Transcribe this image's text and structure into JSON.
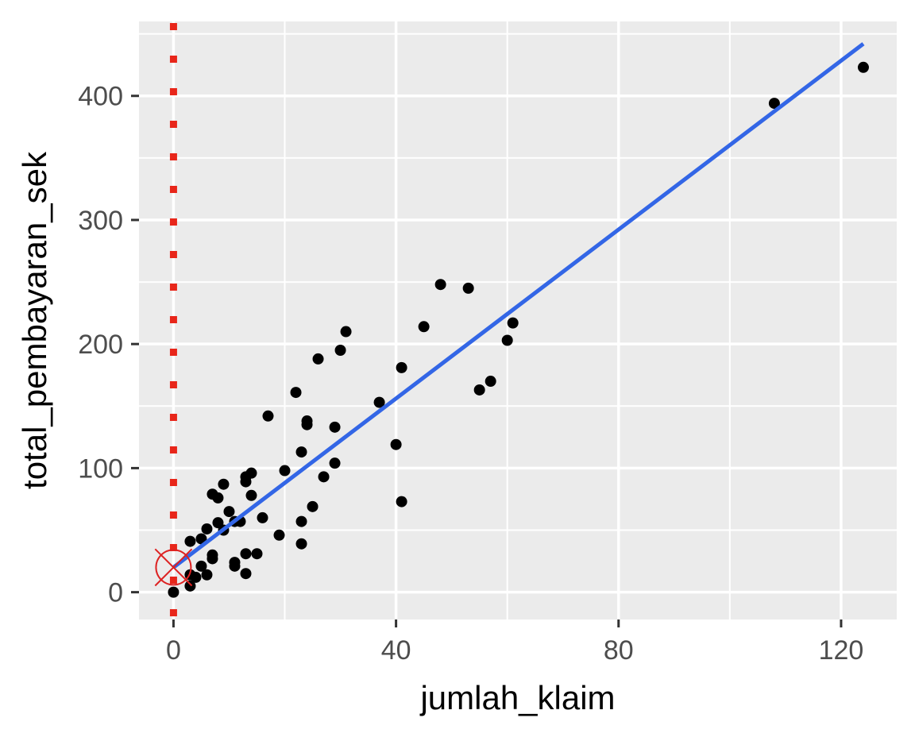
{
  "chart_data": {
    "type": "scatter",
    "title": "",
    "xlabel": "jumlah_klaim",
    "ylabel": "total_pembayaran_sek",
    "xlim": [
      -6.2,
      130
    ],
    "ylim": [
      -22,
      460
    ],
    "x_ticks": [
      0,
      40,
      80,
      120
    ],
    "x_tick_labels": [
      "0",
      "40",
      "80",
      "120"
    ],
    "x_minor_gridlines": [
      20,
      60,
      100
    ],
    "y_ticks": [
      0,
      100,
      200,
      300,
      400
    ],
    "y_tick_labels": [
      "0",
      "100",
      "200",
      "300",
      "400"
    ],
    "y_minor_gridlines": [
      50,
      150,
      250,
      350,
      450
    ],
    "grid": true,
    "legend": null,
    "panel_background": "#ebebeb",
    "gridline_color": "#ffffff",
    "point_color": "#000000",
    "series": [
      {
        "name": "observations",
        "kind": "points",
        "points": [
          [
            0,
            0
          ],
          [
            3,
            5
          ],
          [
            4,
            12
          ],
          [
            3,
            14
          ],
          [
            6,
            14
          ],
          [
            5,
            21
          ],
          [
            7,
            27
          ],
          [
            7,
            30
          ],
          [
            3,
            41
          ],
          [
            5,
            43
          ],
          [
            6,
            51
          ],
          [
            8,
            56
          ],
          [
            9,
            50
          ],
          [
            10,
            65
          ],
          [
            7,
            79
          ],
          [
            8,
            76
          ],
          [
            9,
            87
          ],
          [
            12,
            57
          ],
          [
            11,
            57
          ],
          [
            13,
            89
          ],
          [
            13,
            93
          ],
          [
            14,
            96
          ],
          [
            14,
            78
          ],
          [
            16,
            60
          ],
          [
            11,
            21
          ],
          [
            11,
            24
          ],
          [
            13,
            15
          ],
          [
            13,
            31
          ],
          [
            15,
            31
          ],
          [
            19,
            46
          ],
          [
            23,
            57
          ],
          [
            23,
            39
          ],
          [
            25,
            69
          ],
          [
            27,
            93
          ],
          [
            20,
            98
          ],
          [
            23,
            113
          ],
          [
            29,
            104
          ],
          [
            17,
            142
          ],
          [
            24,
            135
          ],
          [
            24,
            138
          ],
          [
            29,
            133
          ],
          [
            22,
            161
          ],
          [
            26,
            188
          ],
          [
            30,
            195
          ],
          [
            31,
            210
          ],
          [
            37,
            153
          ],
          [
            40,
            119
          ],
          [
            41,
            73
          ],
          [
            41,
            181
          ],
          [
            45,
            214
          ],
          [
            48,
            248
          ],
          [
            53,
            245
          ],
          [
            55,
            163
          ],
          [
            57,
            170
          ],
          [
            60,
            203
          ],
          [
            61,
            217
          ],
          [
            108,
            394
          ],
          [
            124,
            423
          ]
        ]
      },
      {
        "name": "linear fit",
        "kind": "line",
        "color": "#3366e6",
        "x": [
          0,
          124
        ],
        "y": [
          20,
          442
        ]
      },
      {
        "name": "vertical reference at x=0",
        "kind": "dotted-vline",
        "color": "#e8261a",
        "x": 0
      },
      {
        "name": "intercept marker",
        "kind": "circle-x-marker",
        "color": "#dd2222",
        "x": 0,
        "y": 20
      }
    ]
  }
}
